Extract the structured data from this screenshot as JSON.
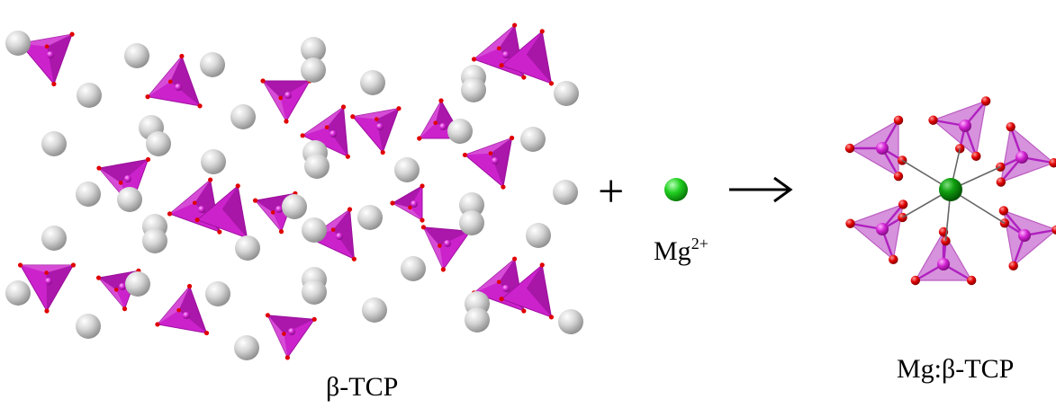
{
  "labels": {
    "lattice": "β-TCP",
    "ion_base": "Mg",
    "ion_charge": "2+",
    "product": "Mg:β-TCP"
  },
  "symbols": {
    "plus": "+",
    "arrow": "→"
  },
  "colors": {
    "tetrahedron": "#cc22cc",
    "tetrahedron_dark": "#8e0f8e",
    "tetrahedron_light": "#e070e0",
    "product_tetrahedron": "#cf7fd6",
    "oxygen": "#e00000",
    "calcium": "#c8c8c8",
    "magnesium": "#10b010",
    "bond": "#666666"
  }
}
